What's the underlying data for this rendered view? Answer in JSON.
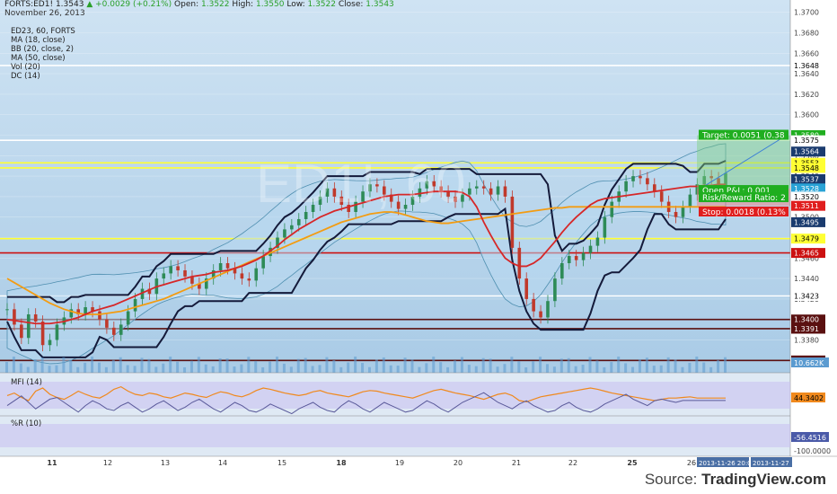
{
  "header": {
    "symbol": "FORTS:ED1!",
    "price": "1.3543",
    "change": "+0.0029 (+0.21%)",
    "open_label": "Open:",
    "open": "1.3522",
    "high_label": "High:",
    "high": "1.3550",
    "low_label": "Low:",
    "low": "1.3522",
    "close_label": "Close:",
    "close": "1.3543",
    "date": "November 26, 2013"
  },
  "indicators": [
    "ED23, 60, FORTS",
    "MA (18, close)",
    "BB (20, close, 2)",
    "MA (50, close)",
    "Vol (20)",
    "DC (14)"
  ],
  "watermark": "ED1!, 60",
  "price_axis": {
    "ticks": [
      "1.3700",
      "1.3680",
      "1.3660",
      "1.3640",
      "1.3620",
      "1.3600",
      "1.3580",
      "1.3560",
      "1.3540",
      "1.3520",
      "1.3500",
      "1.3480",
      "1.3460",
      "1.3440",
      "1.3420",
      "1.3400",
      "1.3380",
      "1.3360"
    ],
    "labels": [
      {
        "text": "1.3648",
        "value": 1.3648,
        "fg": "#000000",
        "bg": "#ffffff"
      },
      {
        "text": "1.3580",
        "value": 1.358,
        "fg": "#ffffff",
        "bg": "#1fae1f"
      },
      {
        "text": "1.3575",
        "value": 1.3575,
        "fg": "#000000",
        "bg": "#ffffff"
      },
      {
        "text": "1.3564",
        "value": 1.3564,
        "fg": "#ffffff",
        "bg": "#1a3b6e"
      },
      {
        "text": "1.3553",
        "value": 1.3553,
        "fg": "#000000",
        "bg": "#ffff33"
      },
      {
        "text": "1.3548",
        "value": 1.3548,
        "fg": "#000000",
        "bg": "#ffff33"
      },
      {
        "text": "1.3537",
        "value": 1.3537,
        "fg": "#ffffff",
        "bg": "#1a3b6e"
      },
      {
        "text": "1.3528",
        "value": 1.3528,
        "fg": "#ffffff",
        "bg": "#29a3d6"
      },
      {
        "text": "1.3520",
        "value": 1.352,
        "fg": "#000000",
        "bg": "#ffffff"
      },
      {
        "text": "1.3511",
        "value": 1.3511,
        "fg": "#ffffff",
        "bg": "#e01e1e"
      },
      {
        "text": "1.3495",
        "value": 1.3495,
        "fg": "#ffffff",
        "bg": "#1a3b6e"
      },
      {
        "text": "1.3479",
        "value": 1.3479,
        "fg": "#000000",
        "bg": "#ffff33"
      },
      {
        "text": "1.3465",
        "value": 1.3465,
        "fg": "#ffffff",
        "bg": "#cc1111"
      },
      {
        "text": "1.3423",
        "value": 1.3423,
        "fg": "#000000",
        "bg": "#ffffff"
      },
      {
        "text": "1.3400",
        "value": 1.34,
        "fg": "#ffffff",
        "bg": "#5a1010"
      },
      {
        "text": "1.3391",
        "value": 1.3391,
        "fg": "#ffffff",
        "bg": "#5a1010"
      },
      {
        "text": "1.3360",
        "value": 1.336,
        "fg": "#ffffff",
        "bg": "#5a1010"
      }
    ],
    "volume_label": "10.662K"
  },
  "trade": {
    "target": "Target: 0.0051 (0.38",
    "open_pnl": "Open P&L: 0.001",
    "risk_reward": "Risk/Reward Ratio: 2",
    "stop": "Stop: 0.0018 (0.13%"
  },
  "mfi": {
    "label": "MFI (14)",
    "value": "44.3402"
  },
  "wr": {
    "label": "%R (10)",
    "value": "-56.4516",
    "bottom": "-100.0000"
  },
  "x_axis": {
    "labels": [
      "11",
      "12",
      "13",
      "14",
      "15",
      "18",
      "19",
      "20",
      "21",
      "22",
      "25",
      "26"
    ],
    "bold": [
      "11",
      "18",
      "25"
    ],
    "date_boxes": [
      "2013-11-26 20:0",
      "2013-11-27"
    ]
  },
  "source": {
    "prefix": "Source: ",
    "brand": "TradingView.com"
  },
  "chart_data": {
    "type": "line",
    "title": "ED23, 60, FORTS",
    "ylim": [
      1.3348,
      1.3712
    ],
    "horizontal_levels": [
      {
        "value": 1.3648,
        "color": "#ffffff"
      },
      {
        "value": 1.3575,
        "color": "#ffffff"
      },
      {
        "value": 1.3553,
        "color": "#ffff33"
      },
      {
        "value": 1.3548,
        "color": "#ffff33"
      },
      {
        "value": 1.3479,
        "color": "#ffff33"
      },
      {
        "value": 1.3465,
        "color": "#cc1111"
      },
      {
        "value": 1.3423,
        "color": "#ffffff"
      },
      {
        "value": 1.34,
        "color": "#5a1010"
      },
      {
        "value": 1.3391,
        "color": "#5a1010"
      },
      {
        "value": 1.336,
        "color": "#5a1010"
      }
    ],
    "close_series": [
      1.341,
      1.3395,
      1.3382,
      1.3405,
      1.3398,
      1.3375,
      1.338,
      1.3395,
      1.3402,
      1.341,
      1.3405,
      1.3412,
      1.3408,
      1.34,
      1.3392,
      1.3385,
      1.3395,
      1.3408,
      1.342,
      1.343,
      1.3425,
      1.344,
      1.3445,
      1.3452,
      1.3448,
      1.3442,
      1.3435,
      1.343,
      1.344,
      1.3448,
      1.3455,
      1.345,
      1.3445,
      1.344,
      1.3438,
      1.345,
      1.3462,
      1.347,
      1.348,
      1.3488,
      1.3492,
      1.3498,
      1.3505,
      1.3512,
      1.352,
      1.3528,
      1.352,
      1.3512,
      1.3505,
      1.3515,
      1.3525,
      1.3532,
      1.353,
      1.3522,
      1.3515,
      1.3508,
      1.3512,
      1.352,
      1.3528,
      1.3535,
      1.353,
      1.3525,
      1.352,
      1.3515,
      1.3522,
      1.3528,
      1.353,
      1.3528,
      1.3522,
      1.353,
      1.352,
      1.347,
      1.344,
      1.342,
      1.3408,
      1.3402,
      1.3418,
      1.344,
      1.3455,
      1.3462,
      1.3458,
      1.3465,
      1.3472,
      1.348,
      1.35,
      1.3515,
      1.3525,
      1.3535,
      1.354,
      1.3538,
      1.3532,
      1.3525,
      1.3515,
      1.3505,
      1.35,
      1.351,
      1.3522,
      1.3532,
      1.354,
      1.3538,
      1.3528,
      1.3543
    ],
    "ma18": [
      1.34,
      1.3399,
      1.3398,
      1.3397,
      1.3396,
      1.3396,
      1.3396,
      1.3397,
      1.3398,
      1.34,
      1.3402,
      1.3405,
      1.3408,
      1.341,
      1.3412,
      1.3414,
      1.3417,
      1.342,
      1.3423,
      1.3426,
      1.3429,
      1.3432,
      1.3434,
      1.3436,
      1.3438,
      1.344,
      1.3442,
      1.3443,
      1.3444,
      1.3446,
      1.3447,
      1.3448,
      1.345,
      1.3452,
      1.3455,
      1.3458,
      1.3462,
      1.3467,
      1.3472,
      1.3478,
      1.3483,
      1.3488,
      1.3492,
      1.3496,
      1.35,
      1.3503,
      1.3506,
      1.3508,
      1.351,
      1.3512,
      1.3514,
      1.3516,
      1.3518,
      1.352,
      1.3521,
      1.3522,
      1.3522,
      1.3522,
      1.3523,
      1.3524,
      1.3525,
      1.3525,
      1.3525,
      1.3525,
      1.3524,
      1.352,
      1.351,
      1.3495,
      1.3482,
      1.347,
      1.346,
      1.3455,
      1.3452,
      1.3452,
      1.3455,
      1.346,
      1.3468,
      1.3476,
      1.3485,
      1.3493,
      1.35,
      1.3506,
      1.3512,
      1.3516,
      1.3518,
      1.3519,
      1.352,
      1.3521,
      1.3522,
      1.3523,
      1.3524,
      1.3525,
      1.3526,
      1.3527,
      1.3528,
      1.3529,
      1.353,
      1.353,
      1.3531,
      1.3531,
      1.3532,
      1.3532
    ],
    "ma50": [
      1.344,
      1.3436,
      1.3432,
      1.3428,
      1.3424,
      1.342,
      1.3416,
      1.3413,
      1.341,
      1.3408,
      1.3406,
      1.3405,
      1.3405,
      1.3405,
      1.3406,
      1.3407,
      1.3408,
      1.341,
      1.3412,
      1.3414,
      1.3416,
      1.3418,
      1.342,
      1.3423,
      1.3426,
      1.3429,
      1.3432,
      1.3435,
      1.3438,
      1.3441,
      1.3444,
      1.3447,
      1.345,
      1.3453,
      1.3456,
      1.3459,
      1.3462,
      1.3465,
      1.3468,
      1.3471,
      1.3474,
      1.3477,
      1.348,
      1.3483,
      1.3486,
      1.3489,
      1.3492,
      1.3495,
      1.3497,
      1.3499,
      1.3501,
      1.3503,
      1.3504,
      1.3505,
      1.3505,
      1.3504,
      1.3502,
      1.35,
      1.3498,
      1.3496,
      1.3495,
      1.3494,
      1.3494,
      1.3495,
      1.3496,
      1.3497,
      1.3498,
      1.3499,
      1.35,
      1.3501,
      1.3502,
      1.3503,
      1.3504,
      1.3505,
      1.3506,
      1.3507,
      1.3508,
      1.3509,
      1.3509,
      1.351,
      1.351,
      1.351,
      1.351,
      1.351,
      1.351,
      1.351,
      1.351,
      1.351,
      1.351,
      1.351,
      1.351,
      1.351,
      1.351,
      1.351,
      1.351,
      1.351,
      1.351,
      1.351,
      1.351,
      1.351,
      1.351,
      1.351
    ],
    "mfi_series": [
      48,
      52,
      45,
      40,
      55,
      60,
      50,
      45,
      42,
      48,
      55,
      50,
      46,
      44,
      50,
      58,
      62,
      55,
      50,
      48,
      52,
      50,
      46,
      44,
      48,
      52,
      50,
      47,
      45,
      50,
      54,
      52,
      48,
      46,
      50,
      56,
      60,
      58,
      55,
      52,
      50,
      48,
      50,
      54,
      56,
      52,
      50,
      48,
      46,
      50,
      54,
      56,
      55,
      52,
      50,
      48,
      46,
      44,
      48,
      52,
      56,
      58,
      55,
      52,
      50,
      48,
      45,
      42,
      46,
      50,
      52,
      48,
      40,
      38,
      42,
      46,
      48,
      50,
      52,
      54,
      56,
      58,
      60,
      58,
      55,
      52,
      50,
      48,
      46,
      44,
      42,
      40,
      42,
      44,
      44,
      45,
      46,
      44,
      44,
      44,
      44,
      44
    ],
    "wr_series": [
      -40,
      -55,
      -70,
      -50,
      -30,
      -45,
      -60,
      -65,
      -50,
      -35,
      -20,
      -40,
      -55,
      -45,
      -30,
      -25,
      -40,
      -50,
      -35,
      -20,
      -30,
      -45,
      -55,
      -40,
      -25,
      -35,
      -50,
      -60,
      -45,
      -30,
      -20,
      -35,
      -50,
      -40,
      -25,
      -20,
      -30,
      -45,
      -35,
      -25,
      -15,
      -30,
      -40,
      -50,
      -35,
      -25,
      -20,
      -40,
      -55,
      -45,
      -30,
      -20,
      -35,
      -50,
      -40,
      -30,
      -20,
      -25,
      -40,
      -55,
      -45,
      -30,
      -20,
      -35,
      -50,
      -60,
      -70,
      -80,
      -65,
      -50,
      -40,
      -30,
      -45,
      -55,
      -40,
      -30,
      -20,
      -25,
      -40,
      -50,
      -35,
      -25,
      -20,
      -30,
      -45,
      -55,
      -65,
      -75,
      -60,
      -50,
      -40,
      -55,
      -60,
      -55,
      -50,
      -56,
      -56,
      -56,
      -56,
      -56,
      -56,
      -56
    ]
  }
}
